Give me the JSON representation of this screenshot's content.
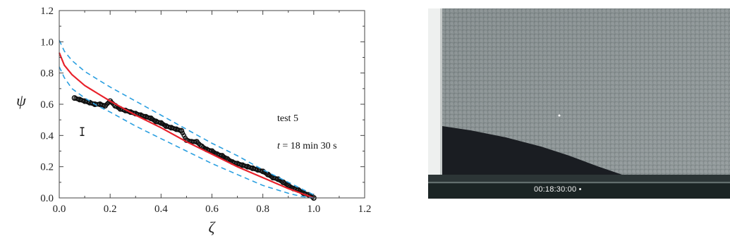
{
  "chart_data": {
    "type": "scatter",
    "xlabel": "ζ",
    "ylabel": "ψ",
    "xlim": [
      0.0,
      1.2
    ],
    "ylim": [
      0.0,
      1.2
    ],
    "xticks": [
      "0.0",
      "0.2",
      "0.4",
      "0.6",
      "0.8",
      "1.0",
      "1.2"
    ],
    "yticks": [
      "0.0",
      "0.2",
      "0.4",
      "0.6",
      "0.8",
      "1.0",
      "1.2"
    ],
    "annotations": {
      "test_label": "test 5",
      "time_label_var": "t",
      "time_label_value": " = 18 min 30 s"
    },
    "series": [
      {
        "style": "markers",
        "color": "#111111",
        "x": [
          0.06,
          0.08,
          0.1,
          0.12,
          0.14,
          0.16,
          0.18,
          0.2,
          0.22,
          0.24,
          0.26,
          0.28,
          0.3,
          0.32,
          0.34,
          0.36,
          0.38,
          0.4,
          0.42,
          0.44,
          0.46,
          0.48,
          0.5,
          0.52,
          0.54,
          0.56,
          0.58,
          0.6,
          0.62,
          0.64,
          0.66,
          0.68,
          0.7,
          0.72,
          0.74,
          0.76,
          0.78,
          0.8,
          0.82,
          0.84,
          0.86,
          0.88,
          0.9,
          0.92,
          0.94,
          0.96,
          0.98,
          1.0
        ],
        "y": [
          0.64,
          0.63,
          0.62,
          0.61,
          0.6,
          0.6,
          0.59,
          0.62,
          0.59,
          0.57,
          0.56,
          0.55,
          0.54,
          0.53,
          0.52,
          0.51,
          0.49,
          0.48,
          0.46,
          0.45,
          0.44,
          0.43,
          0.37,
          0.36,
          0.36,
          0.33,
          0.31,
          0.3,
          0.28,
          0.27,
          0.25,
          0.23,
          0.22,
          0.21,
          0.2,
          0.19,
          0.18,
          0.17,
          0.15,
          0.13,
          0.12,
          0.1,
          0.08,
          0.06,
          0.05,
          0.03,
          0.02,
          0.0
        ]
      },
      {
        "style": "solid",
        "color": "#e8202a",
        "x": [
          0.0,
          0.02,
          0.05,
          0.1,
          0.15,
          0.2,
          0.3,
          0.4,
          0.5,
          0.6,
          0.7,
          0.8,
          0.9,
          0.95,
          1.0
        ],
        "y": [
          0.93,
          0.85,
          0.79,
          0.72,
          0.67,
          0.62,
          0.53,
          0.45,
          0.36,
          0.28,
          0.2,
          0.13,
          0.06,
          0.03,
          0.0
        ]
      },
      {
        "style": "dashed",
        "color": "#2a9fe0",
        "x": [
          0.0,
          0.02,
          0.05,
          0.1,
          0.15,
          0.2,
          0.3,
          0.4,
          0.5,
          0.6,
          0.7,
          0.8,
          0.9,
          0.95,
          1.0
        ],
        "y": [
          1.01,
          0.94,
          0.88,
          0.81,
          0.76,
          0.71,
          0.62,
          0.53,
          0.44,
          0.35,
          0.27,
          0.18,
          0.1,
          0.06,
          0.02
        ]
      },
      {
        "style": "dashed",
        "color": "#2a9fe0",
        "x": [
          0.0,
          0.02,
          0.05,
          0.1,
          0.15,
          0.2,
          0.3,
          0.4,
          0.5,
          0.6,
          0.7,
          0.8,
          0.9,
          0.95,
          1.0
        ],
        "y": [
          0.84,
          0.77,
          0.7,
          0.64,
          0.59,
          0.55,
          0.46,
          0.38,
          0.3,
          0.22,
          0.15,
          0.08,
          0.03,
          0.01,
          0.0
        ]
      }
    ],
    "error_bar": {
      "x": 0.09,
      "y_low": 0.4,
      "y_high": 0.45,
      "color": "#111111"
    }
  },
  "photo": {
    "timestamp": "00:18:30:00 •"
  }
}
